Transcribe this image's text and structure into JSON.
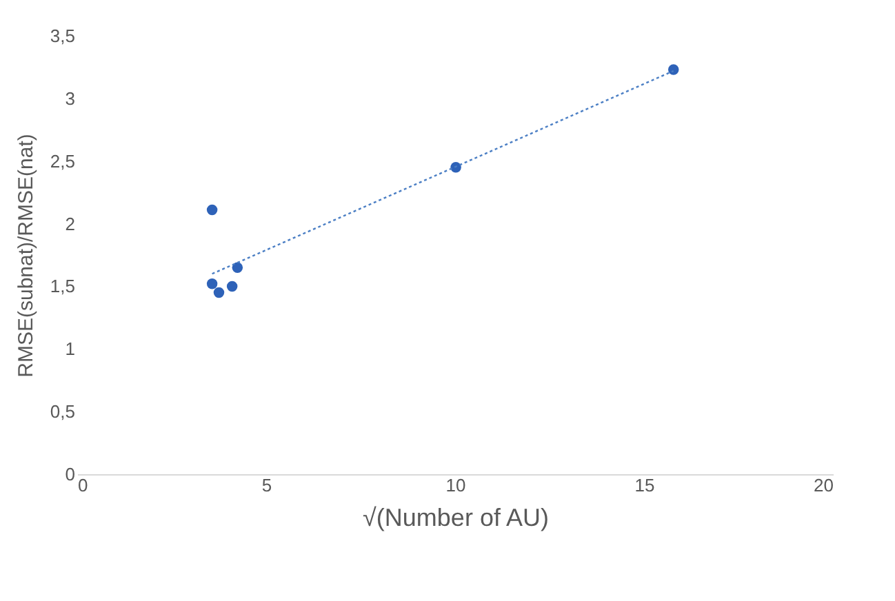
{
  "chart_data": {
    "type": "scatter",
    "xlabel": "√(Number of AU)",
    "ylabel": "RMSE(subnat)/RMSE(nat)",
    "xlim": [
      0,
      20
    ],
    "xticks": [
      0,
      5,
      10,
      15,
      20
    ],
    "ylim": [
      0,
      3.5
    ],
    "yticks": [
      0,
      {
        "value": 0.5,
        "label": "0,5"
      },
      1,
      {
        "value": 1.5,
        "label": "1,5"
      },
      2,
      {
        "value": 2.5,
        "label": "2,5"
      },
      3,
      {
        "value": 3.5,
        "label": "3,5"
      }
    ],
    "grid": false,
    "marker": "circle",
    "series": [
      {
        "color": "#2e62b8",
        "x": [
          15.78,
          10.02,
          3.57,
          4.24,
          3.57,
          3.75,
          4.1
        ],
        "values": [
          3.23,
          2.45,
          2.11,
          1.65,
          1.52,
          1.45,
          1.5
        ]
      },
      {
        "type": "line",
        "color": "#4a7ec4",
        "line_style": "dotted",
        "marker": "none",
        "x": [
          3.57,
          15.78
        ],
        "values": [
          1.6,
          3.22
        ]
      }
    ]
  }
}
